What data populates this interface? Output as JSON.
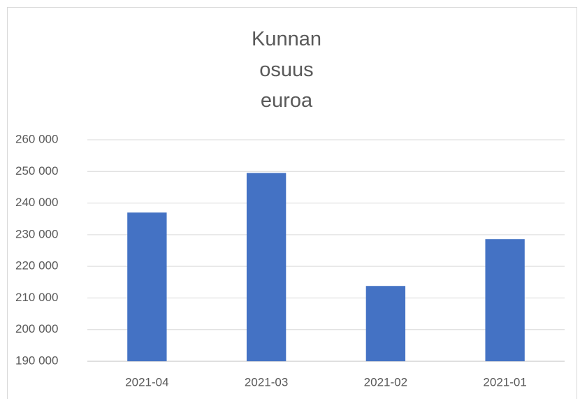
{
  "chart_data": {
    "type": "bar",
    "title": "Kunnan osuus euroa",
    "categories": [
      "2021-04",
      "2021-03",
      "2021-02",
      "2021-01"
    ],
    "values": [
      237000,
      249500,
      213800,
      228600
    ],
    "color": "#4472c4",
    "ylim": [
      190000,
      260000
    ],
    "yticks": [
      {
        "value": 190000,
        "label": "190 000"
      },
      {
        "value": 200000,
        "label": "200 000"
      },
      {
        "value": 210000,
        "label": "210 000"
      },
      {
        "value": 220000,
        "label": "220 000"
      },
      {
        "value": 230000,
        "label": "230 000"
      },
      {
        "value": 240000,
        "label": "240 000"
      },
      {
        "value": 250000,
        "label": "250 000"
      },
      {
        "value": 260000,
        "label": "260 000"
      }
    ],
    "grid": true
  }
}
